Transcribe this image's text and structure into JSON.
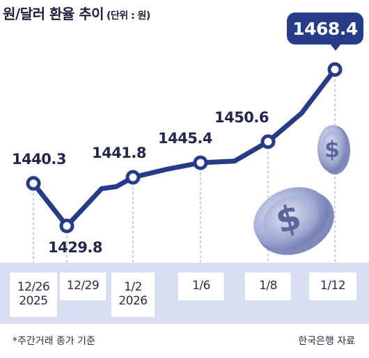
{
  "title": "원/달러 환율 추이",
  "unit": "(단위 : 원)",
  "note": "*주간거래 종가 기준",
  "source": "한국은행 자료",
  "colors": {
    "line": "#263c86",
    "band": "#d9def3",
    "badge": "#263c86",
    "coin": "#8e98c6"
  },
  "chart_data": {
    "type": "line",
    "categories": [
      "12/26 2025",
      "12/29",
      "1/2 2026",
      "1/6",
      "1/8",
      "1/12"
    ],
    "x_ticks": [
      {
        "lines": [
          "12/26",
          "2025"
        ]
      },
      {
        "lines": [
          "12/29"
        ]
      },
      {
        "lines": [
          "1/2",
          "2026"
        ]
      },
      {
        "lines": [
          "1/6"
        ]
      },
      {
        "lines": [
          "1/8"
        ]
      },
      {
        "lines": [
          "1/12"
        ]
      }
    ],
    "series": [
      {
        "points": [
          {
            "x": "12/26",
            "y": 1440.3,
            "label": "1440.3",
            "marker": true
          },
          {
            "x": "12/29",
            "y": 1429.8,
            "label": "1429.8",
            "marker": true
          },
          {
            "x": "12/30",
            "y": 1439.0,
            "marker": false
          },
          {
            "x": "12/31",
            "y": 1439.5,
            "marker": false
          },
          {
            "x": "1/2",
            "y": 1441.8,
            "label": "1441.8",
            "marker": true
          },
          {
            "x": "1/5",
            "y": 1443.8,
            "marker": false
          },
          {
            "x": "1/6",
            "y": 1445.4,
            "label": "1445.4",
            "marker": true
          },
          {
            "x": "1/7",
            "y": 1445.8,
            "marker": false
          },
          {
            "x": "1/8",
            "y": 1450.6,
            "label": "1450.6",
            "marker": true
          },
          {
            "x": "1/9",
            "y": 1457.6,
            "marker": false
          },
          {
            "x": "1/12",
            "y": 1468.4,
            "label": "1468.4",
            "marker": true,
            "highlight": true
          }
        ]
      }
    ],
    "grid": false
  }
}
